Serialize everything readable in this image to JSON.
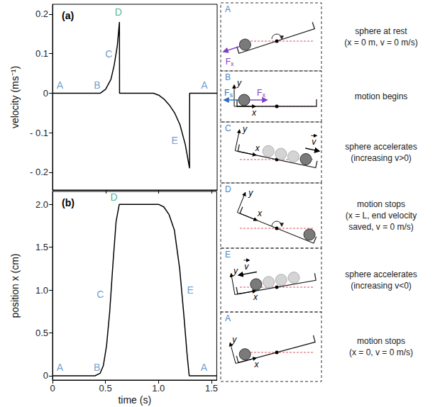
{
  "chart_data": [
    {
      "type": "line",
      "title": "(a)",
      "y_label": "velocity (ms⁻¹)",
      "color": "#000000",
      "x": [
        0,
        0.3,
        0.45,
        0.5,
        0.55,
        0.58,
        0.61,
        0.63,
        0.631,
        0.95,
        1.0,
        1.05,
        1.1,
        1.15,
        1.2,
        1.25,
        1.29,
        1.291,
        1.55
      ],
      "values": [
        0,
        0,
        0,
        0.01,
        0.035,
        0.07,
        0.12,
        0.18,
        0,
        0,
        -0.005,
        -0.015,
        -0.03,
        -0.05,
        -0.08,
        -0.13,
        -0.19,
        0,
        0
      ],
      "xlim": [
        0,
        1.55
      ],
      "xticks": [
        0,
        0.5,
        {
          "value": 1,
          "label": "1.0"
        },
        1.5
      ],
      "ylim": [
        -0.245,
        0.225
      ],
      "yticks": [
        {
          "value": -0.2,
          "label": "- 0.2"
        },
        {
          "value": -0.1,
          "label": "- 0.1"
        },
        0,
        0.1,
        0.2
      ],
      "grid": false,
      "tick_labels": "y",
      "annotations": [
        {
          "text": "A",
          "x": 0.07,
          "y": 0.02,
          "color": "#4a86c5"
        },
        {
          "text": "B",
          "x": 0.42,
          "y": 0.02,
          "color": "#4a86c5"
        },
        {
          "text": "C",
          "x": 0.53,
          "y": 0.1,
          "color": "#4a86c5"
        },
        {
          "text": "D",
          "x": 0.62,
          "y": 0.205,
          "color": "#1f9e79"
        },
        {
          "text": "E",
          "x": 1.15,
          "y": -0.12,
          "color": "#4a86c5"
        },
        {
          "text": "A",
          "x": 1.43,
          "y": 0.02,
          "color": "#4a86c5"
        }
      ]
    },
    {
      "type": "line",
      "title": "(b)",
      "x_label": "time (s)",
      "y_label": "position x (cm)",
      "color": "#000000",
      "x": [
        0,
        0.4,
        0.45,
        0.48,
        0.51,
        0.54,
        0.57,
        0.6,
        0.63,
        1.0,
        1.05,
        1.1,
        1.15,
        1.2,
        1.24,
        1.27,
        1.29,
        1.55
      ],
      "values": [
        0,
        0,
        0.03,
        0.12,
        0.35,
        0.75,
        1.3,
        1.8,
        2.0,
        2.0,
        1.97,
        1.88,
        1.7,
        1.25,
        0.7,
        0.25,
        0,
        0
      ],
      "xlim": [
        0,
        1.55
      ],
      "xticks": [
        0,
        0.5,
        {
          "value": 1,
          "label": "1.0"
        },
        1.5
      ],
      "ylim": [
        -0.05,
        2.15
      ],
      "yticks": [
        0,
        0.5,
        {
          "value": 1,
          "label": "1.0"
        },
        1.5,
        {
          "value": 2,
          "label": "2.0"
        }
      ],
      "grid": false,
      "annotations": [
        {
          "text": "A",
          "x": 0.07,
          "y": 0.1,
          "color": "#4a86c5"
        },
        {
          "text": "B",
          "x": 0.42,
          "y": 0.1,
          "color": "#4a86c5"
        },
        {
          "text": "C",
          "x": 0.45,
          "y": 0.95,
          "color": "#4a86c5"
        },
        {
          "text": "D",
          "x": 0.58,
          "y": 2.08,
          "color": "#1f9e79"
        },
        {
          "text": "E",
          "x": 1.3,
          "y": 1.0,
          "color": "#4a86c5"
        },
        {
          "text": "A",
          "x": 1.43,
          "y": 0.1,
          "color": "#4a86c5"
        }
      ]
    }
  ],
  "diagram": {
    "letter_color": "#4a86c5",
    "panels": [
      {
        "letter": "A",
        "caption": [
          "sphere at rest",
          "(x = 0 m, v = 0 m/s)"
        ],
        "labels": [
          {
            "text": "F",
            "sub": "x",
            "color": "#7f3fbf"
          }
        ]
      },
      {
        "letter": "B",
        "caption": [
          "motion begins"
        ],
        "labels": [
          {
            "text": "y",
            "color": "#000000"
          },
          {
            "text": "x",
            "color": "#000000"
          },
          {
            "text": "F",
            "sub": "s",
            "color": "#2d6fbf"
          },
          {
            "text": "F",
            "sub": "x",
            "color": "#7f3fbf"
          }
        ]
      },
      {
        "letter": "C",
        "caption": [
          "sphere accelerates",
          "(increasing v>0)"
        ],
        "labels": [
          {
            "text": "y",
            "color": "#000000"
          },
          {
            "text": "x",
            "color": "#000000"
          },
          {
            "text": "v",
            "vector": true,
            "color": "#000000"
          }
        ]
      },
      {
        "letter": "D",
        "caption": [
          "motion stops",
          "(x = L, end velocity",
          "saved, v = 0 m/s)"
        ],
        "labels": [
          {
            "text": "y",
            "color": "#000000"
          },
          {
            "text": "x",
            "color": "#000000"
          }
        ]
      },
      {
        "letter": "E",
        "caption": [
          "sphere accelerates",
          "(increasing v<0)"
        ],
        "labels": [
          {
            "text": "y",
            "color": "#000000"
          },
          {
            "text": "x",
            "color": "#000000"
          },
          {
            "text": "v",
            "vector": true,
            "color": "#000000"
          }
        ]
      },
      {
        "letter": "A",
        "caption": [
          "motion stops",
          "(x = 0, v = 0 m/s)"
        ],
        "labels": [
          {
            "text": "y",
            "color": "#000000"
          },
          {
            "text": "x",
            "color": "#000000"
          }
        ]
      }
    ]
  }
}
